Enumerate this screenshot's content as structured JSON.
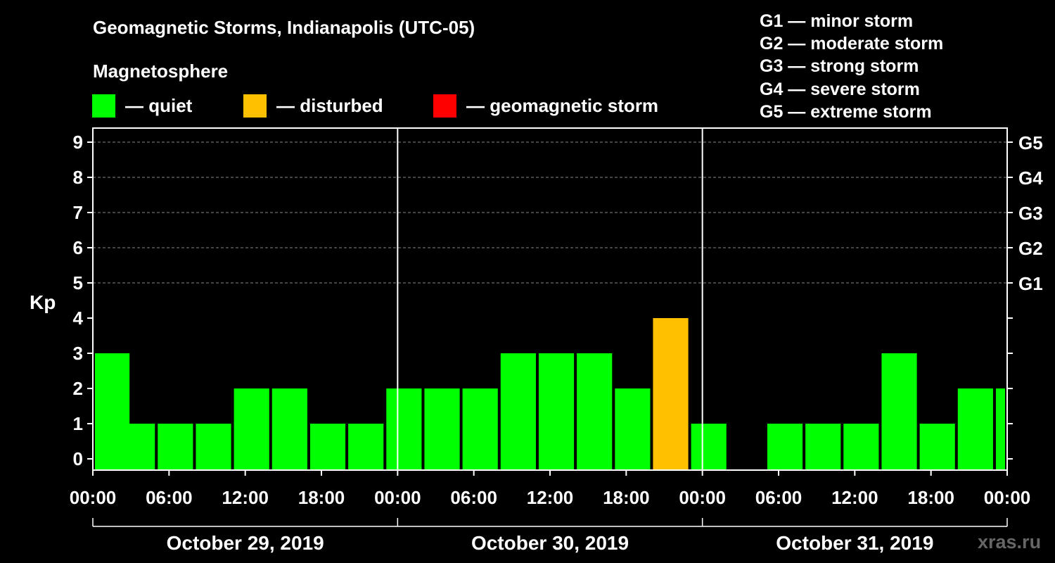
{
  "title": "Geomagnetic Storms, Indianapolis (UTC-05)",
  "subtitle": "Magnetosphere",
  "legend": [
    {
      "label": "— quiet",
      "color": "#00ff00",
      "icon": "square"
    },
    {
      "label": "— disturbed",
      "color": "#ffc000",
      "icon": "square"
    },
    {
      "label": "— geomagnetic storm",
      "color": "#ff0000",
      "icon": "square"
    }
  ],
  "storm_levels": [
    "G1 — minor storm",
    "G2 — moderate storm",
    "G3 — strong storm",
    "G4 — severe storm",
    "G5 — extreme storm"
  ],
  "watermark": "xras.ru",
  "chart_data": {
    "type": "bar",
    "ylabel": "Kp",
    "ylim": [
      0,
      9
    ],
    "yticks": [
      0,
      1,
      2,
      3,
      4,
      5,
      6,
      7,
      8,
      9
    ],
    "right_ticks": [
      {
        "value": 5,
        "label": "G1"
      },
      {
        "value": 6,
        "label": "G2"
      },
      {
        "value": 7,
        "label": "G3"
      },
      {
        "value": 8,
        "label": "G4"
      },
      {
        "value": 9,
        "label": "G5"
      }
    ],
    "xlim_hours": [
      0,
      72
    ],
    "xtick_labels": [
      "00:00",
      "06:00",
      "12:00",
      "18:00",
      "00:00",
      "06:00",
      "12:00",
      "18:00",
      "00:00",
      "06:00",
      "12:00",
      "18:00",
      "00:00"
    ],
    "days": [
      "October 29, 2019",
      "October 30, 2019",
      "October 31, 2019"
    ],
    "grid_dashed_y": [
      5,
      6,
      7,
      8,
      9
    ],
    "status_colors": {
      "quiet": "#00ff00",
      "disturbed": "#ffc000",
      "storm": "#ff0000"
    },
    "bars": [
      {
        "start": "2019-10-29 00:00",
        "kp": 3,
        "status": "quiet"
      },
      {
        "start": "2019-10-29 02:00",
        "kp": 1,
        "status": "quiet"
      },
      {
        "start": "2019-10-29 05:00",
        "kp": 1,
        "status": "quiet"
      },
      {
        "start": "2019-10-29 08:00",
        "kp": 1,
        "status": "quiet"
      },
      {
        "start": "2019-10-29 11:00",
        "kp": 2,
        "status": "quiet"
      },
      {
        "start": "2019-10-29 14:00",
        "kp": 2,
        "status": "quiet"
      },
      {
        "start": "2019-10-29 17:00",
        "kp": 1,
        "status": "quiet"
      },
      {
        "start": "2019-10-29 20:00",
        "kp": 1,
        "status": "quiet"
      },
      {
        "start": "2019-10-29 23:00",
        "kp": 2,
        "status": "quiet"
      },
      {
        "start": "2019-10-30 02:00",
        "kp": 2,
        "status": "quiet"
      },
      {
        "start": "2019-10-30 05:00",
        "kp": 2,
        "status": "quiet"
      },
      {
        "start": "2019-10-30 08:00",
        "kp": 3,
        "status": "quiet"
      },
      {
        "start": "2019-10-30 11:00",
        "kp": 3,
        "status": "quiet"
      },
      {
        "start": "2019-10-30 14:00",
        "kp": 3,
        "status": "quiet"
      },
      {
        "start": "2019-10-30 17:00",
        "kp": 2,
        "status": "quiet"
      },
      {
        "start": "2019-10-30 20:00",
        "kp": 4,
        "status": "disturbed"
      },
      {
        "start": "2019-10-30 23:00",
        "kp": 1,
        "status": "quiet"
      },
      {
        "start": "2019-10-31 05:00",
        "kp": 1,
        "status": "quiet"
      },
      {
        "start": "2019-10-31 08:00",
        "kp": 1,
        "status": "quiet"
      },
      {
        "start": "2019-10-31 11:00",
        "kp": 1,
        "status": "quiet"
      },
      {
        "start": "2019-10-31 14:00",
        "kp": 3,
        "status": "quiet"
      },
      {
        "start": "2019-10-31 17:00",
        "kp": 1,
        "status": "quiet"
      },
      {
        "start": "2019-10-31 20:00",
        "kp": 2,
        "status": "quiet"
      },
      {
        "start": "2019-10-31 23:00",
        "kp": 2,
        "status": "quiet"
      }
    ]
  }
}
